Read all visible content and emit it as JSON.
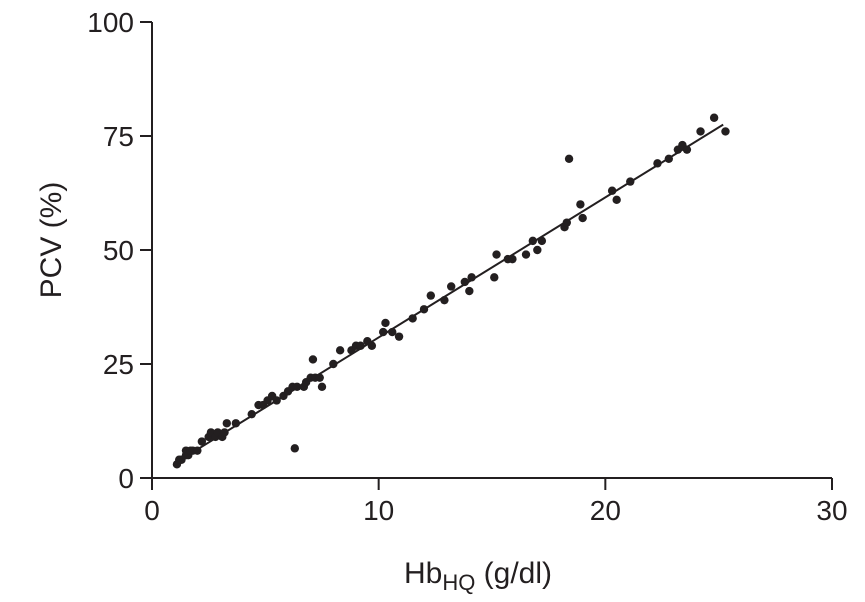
{
  "chart_data": {
    "type": "scatter",
    "title": "",
    "xlabel": "Hb",
    "xlabel_subscript": "HQ",
    "xlabel_unit": " (g/dl)",
    "ylabel": "PCV (%)",
    "xlim": [
      0,
      30
    ],
    "ylim": [
      0,
      100
    ],
    "xticks": [
      0,
      10,
      20,
      30
    ],
    "xtick_labels": [
      "0",
      "10",
      "20",
      "30"
    ],
    "yticks": [
      0,
      25,
      50,
      75,
      100
    ],
    "ytick_labels": [
      "0",
      "25",
      "50",
      "75",
      "100"
    ],
    "grid": false,
    "legend": "none",
    "colors": {
      "points": "#231f20",
      "axes": "#231f20",
      "fit_line": "#231f20"
    },
    "fit_line": {
      "x": [
        1.1,
        25.2
      ],
      "y": [
        3.5,
        77.5
      ]
    },
    "series": [
      {
        "points": [
          [
            1.1,
            3
          ],
          [
            1.2,
            4
          ],
          [
            1.3,
            4
          ],
          [
            1.5,
            5
          ],
          [
            1.5,
            6
          ],
          [
            1.6,
            5
          ],
          [
            1.7,
            6
          ],
          [
            1.8,
            6
          ],
          [
            2.0,
            6
          ],
          [
            2.2,
            8
          ],
          [
            2.5,
            9
          ],
          [
            2.6,
            10
          ],
          [
            2.8,
            9
          ],
          [
            2.9,
            10
          ],
          [
            3.1,
            9
          ],
          [
            3.2,
            10
          ],
          [
            3.3,
            12
          ],
          [
            3.7,
            12
          ],
          [
            4.4,
            14
          ],
          [
            4.7,
            16
          ],
          [
            4.9,
            16
          ],
          [
            5.1,
            17
          ],
          [
            5.3,
            18
          ],
          [
            5.5,
            17
          ],
          [
            5.8,
            18
          ],
          [
            6.0,
            19
          ],
          [
            6.2,
            20
          ],
          [
            6.4,
            20
          ],
          [
            6.3,
            6.5
          ],
          [
            6.7,
            20
          ],
          [
            6.8,
            21
          ],
          [
            7.0,
            22
          ],
          [
            7.1,
            26
          ],
          [
            7.2,
            22
          ],
          [
            7.4,
            22
          ],
          [
            7.5,
            20
          ],
          [
            8.0,
            25
          ],
          [
            8.3,
            28
          ],
          [
            8.8,
            28
          ],
          [
            9.0,
            29
          ],
          [
            9.2,
            29
          ],
          [
            9.5,
            30
          ],
          [
            9.7,
            29
          ],
          [
            10.2,
            32
          ],
          [
            10.3,
            34
          ],
          [
            10.6,
            32
          ],
          [
            10.9,
            31
          ],
          [
            11.5,
            35
          ],
          [
            12.0,
            37
          ],
          [
            12.3,
            40
          ],
          [
            12.9,
            39
          ],
          [
            13.2,
            42
          ],
          [
            13.8,
            43
          ],
          [
            14.0,
            41
          ],
          [
            14.1,
            44
          ],
          [
            15.1,
            44
          ],
          [
            15.2,
            49
          ],
          [
            15.7,
            48
          ],
          [
            15.9,
            48
          ],
          [
            16.5,
            49
          ],
          [
            16.8,
            52
          ],
          [
            17.0,
            50
          ],
          [
            17.2,
            52
          ],
          [
            18.2,
            55
          ],
          [
            18.3,
            56
          ],
          [
            18.4,
            70
          ],
          [
            18.9,
            60
          ],
          [
            19.0,
            57
          ],
          [
            20.3,
            63
          ],
          [
            20.5,
            61
          ],
          [
            21.1,
            65
          ],
          [
            22.3,
            69
          ],
          [
            22.8,
            70
          ],
          [
            23.2,
            72
          ],
          [
            23.4,
            73
          ],
          [
            23.6,
            72
          ],
          [
            24.2,
            76
          ],
          [
            24.8,
            79
          ],
          [
            25.3,
            76
          ]
        ]
      }
    ]
  }
}
